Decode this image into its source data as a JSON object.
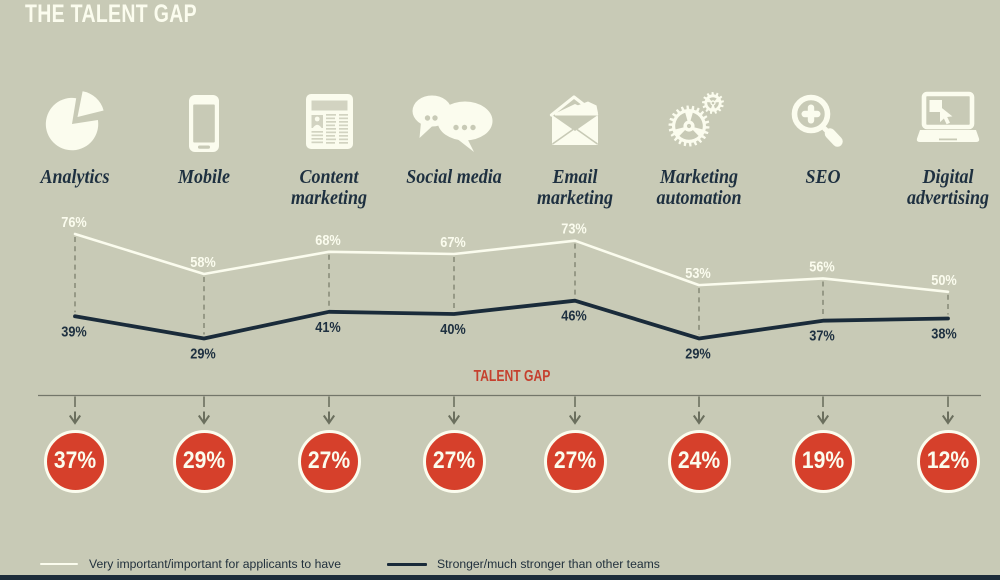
{
  "page": {
    "background_color": "#c8cab6",
    "footer_bar_color": "#1d2c3a"
  },
  "title": {
    "text": "THE TALENT GAP",
    "color": "#fbfcee"
  },
  "chart_data": {
    "type": "line",
    "title": "THE TALENT GAP",
    "categories": [
      "Analytics",
      "Mobile",
      "Content marketing",
      "Social media",
      "Email marketing",
      "Marketing automation",
      "SEO",
      "Digital advertising"
    ],
    "icons": [
      "pie-chart-icon",
      "smartphone-icon",
      "newspaper-icon",
      "speech-bubbles-icon",
      "envelope-icon",
      "gears-icon",
      "magnifier-plus-icon",
      "laptop-cursor-icon"
    ],
    "series": [
      {
        "name": "Very important/important for applicants to have",
        "color": "#fbfcee",
        "values": [
          76,
          58,
          68,
          67,
          73,
          53,
          56,
          50
        ]
      },
      {
        "name": "Stronger/much stronger than other teams",
        "color": "#1a2b3a",
        "values": [
          39,
          29,
          41,
          40,
          46,
          29,
          37,
          38
        ]
      }
    ],
    "value_suffix": "%",
    "gap": {
      "label": "TALENT GAP",
      "label_color": "#c5402e",
      "circle_color": "#d6402b",
      "circle_text_color": "#fbfcee",
      "values": [
        37,
        29,
        27,
        27,
        27,
        24,
        19,
        12
      ]
    },
    "label_color": "#1e3040",
    "axis_color": "#73766a",
    "dash_color": "#8a8d7b",
    "arrow_color": "#6b6f5e",
    "ylim": [
      0,
      100
    ],
    "grid": false,
    "legend_position": "bottom"
  },
  "legend": {
    "items": [
      {
        "label": "Very important/important for applicants to have",
        "color": "#fbfcee"
      },
      {
        "label": "Stronger/much stronger than other teams",
        "color": "#1a2b3a"
      }
    ],
    "text_color": "#22313d"
  }
}
